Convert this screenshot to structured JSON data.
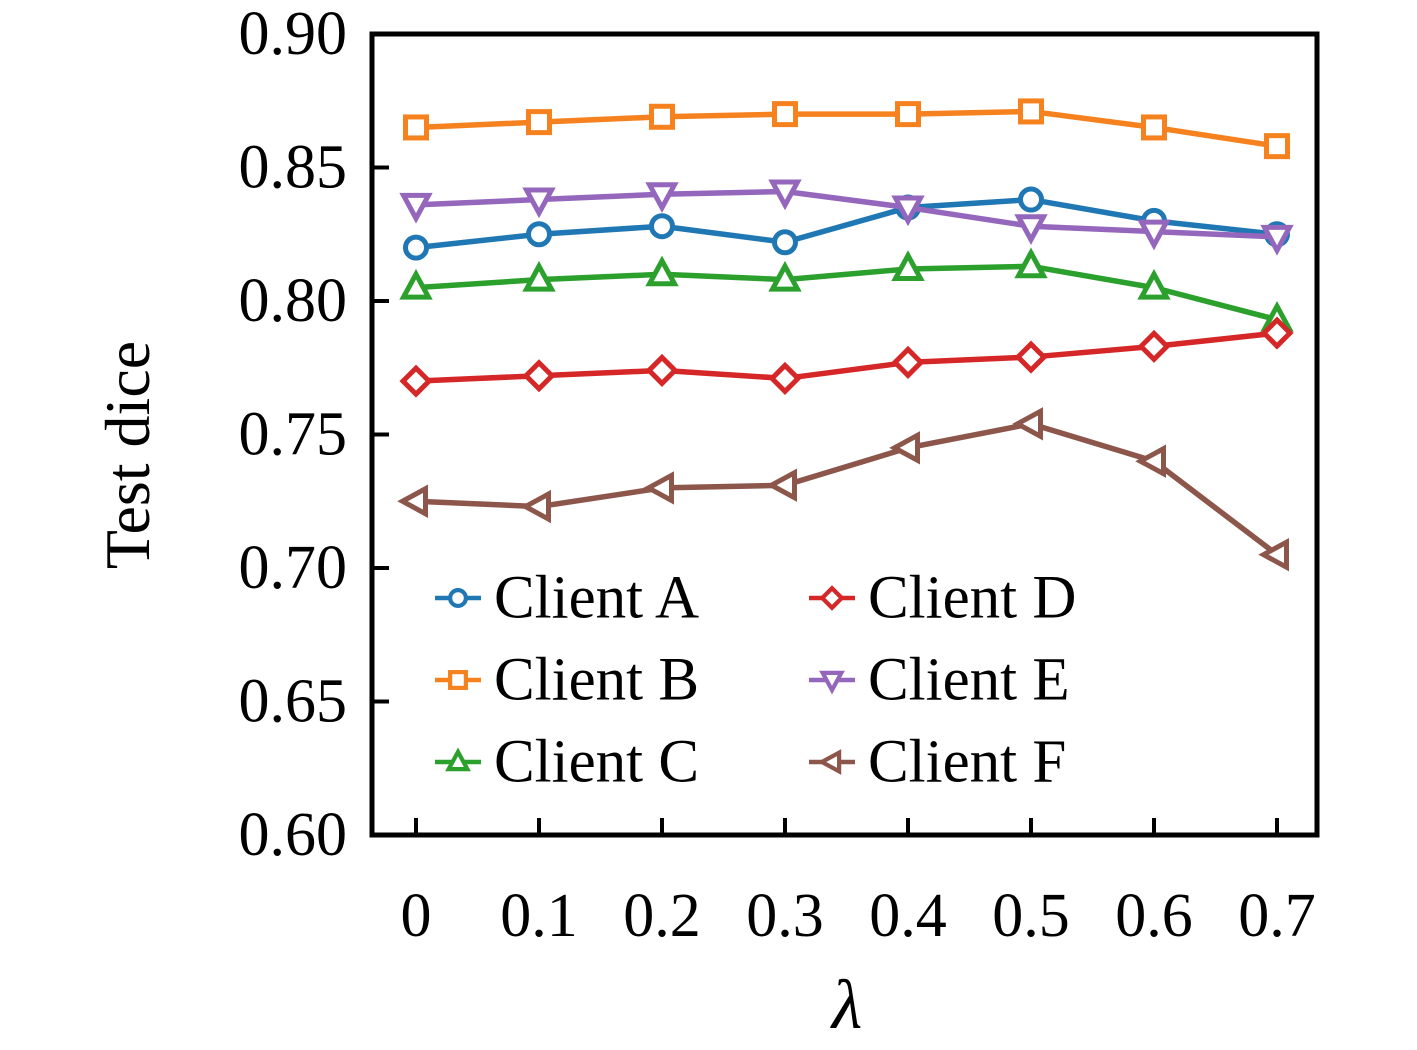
{
  "figure": {
    "ylabel": "Test dice",
    "xlabel": "λ"
  },
  "chart_data": {
    "type": "line",
    "title": "",
    "xlabel": "λ",
    "ylabel": "Test dice",
    "x": [
      0,
      0.1,
      0.2,
      0.3,
      0.4,
      0.5,
      0.6,
      0.7
    ],
    "xtick_labels": [
      "0",
      "0.1",
      "0.2",
      "0.3",
      "0.4",
      "0.5",
      "0.6",
      "0.7"
    ],
    "ytick_values": [
      0.9,
      0.85,
      0.8,
      0.75,
      0.7,
      0.65,
      0.6
    ],
    "ytick_labels": [
      "0.90",
      "0.85",
      "0.80",
      "0.75",
      "0.70",
      "0.65",
      "0.60"
    ],
    "xlim": [
      0,
      0.7
    ],
    "ylim": [
      0.6,
      0.9
    ],
    "grid": false,
    "legend_position": "inside-lower-center-two-columns",
    "series": [
      {
        "name": "Client A",
        "color": "#1f77b4",
        "marker": "circle",
        "values": [
          0.82,
          0.825,
          0.828,
          0.822,
          0.835,
          0.838,
          0.83,
          0.825
        ]
      },
      {
        "name": "Client B",
        "color": "#f5821f",
        "marker": "square",
        "values": [
          0.865,
          0.867,
          0.869,
          0.87,
          0.87,
          0.871,
          0.865,
          0.858
        ]
      },
      {
        "name": "Client C",
        "color": "#2ba02c",
        "marker": "triangle-up",
        "values": [
          0.805,
          0.808,
          0.81,
          0.808,
          0.812,
          0.813,
          0.805,
          0.793
        ]
      },
      {
        "name": "Client D",
        "color": "#d62728",
        "marker": "diamond",
        "values": [
          0.77,
          0.772,
          0.774,
          0.771,
          0.777,
          0.779,
          0.783,
          0.788
        ]
      },
      {
        "name": "Client E",
        "color": "#9467bd",
        "marker": "triangle-down",
        "values": [
          0.836,
          0.838,
          0.84,
          0.841,
          0.835,
          0.828,
          0.826,
          0.824
        ]
      },
      {
        "name": "Client F",
        "color": "#8c564b",
        "marker": "triangle-left",
        "values": [
          0.725,
          0.723,
          0.73,
          0.731,
          0.745,
          0.754,
          0.74,
          0.705
        ]
      }
    ],
    "legend_entries": [
      "Client A",
      "Client B",
      "Client C",
      "Client D",
      "Client E",
      "Client F"
    ],
    "axis_color": "#000000"
  }
}
